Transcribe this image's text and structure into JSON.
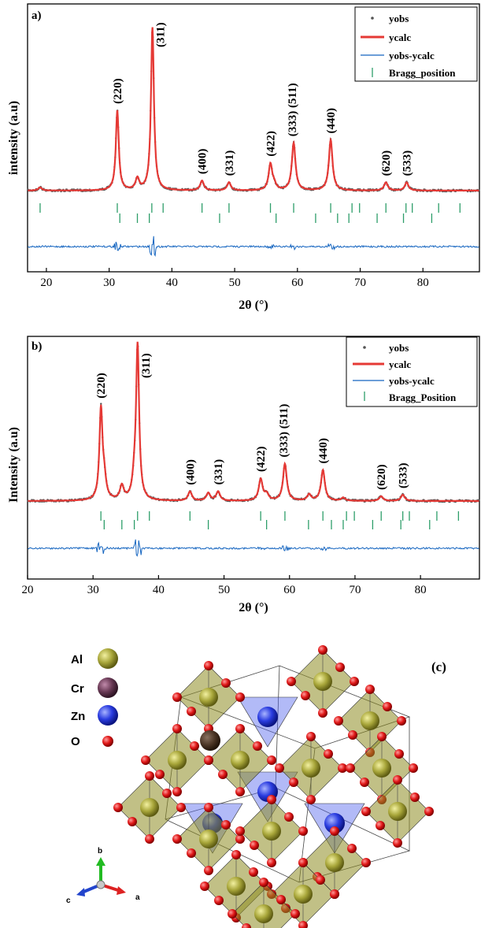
{
  "chart_data": [
    {
      "type": "line",
      "panel": "a)",
      "xlabel": "2θ (°)",
      "ylabel": "intensity (a.u)",
      "xlim": [
        17,
        89
      ],
      "xticks": [
        20,
        30,
        40,
        50,
        60,
        70,
        80
      ],
      "legend_position": "top-right",
      "legend": [
        "yobs",
        "ycalc",
        "yobs-ycalc",
        "Bragg_position"
      ],
      "peaks": [
        {
          "x": 19.0,
          "y": 2
        },
        {
          "x": 31.3,
          "y": 49
        },
        {
          "x": 34.5,
          "y": 7
        },
        {
          "x": 36.9,
          "y": 100
        },
        {
          "x": 44.8,
          "y": 6
        },
        {
          "x": 49.1,
          "y": 5
        },
        {
          "x": 55.7,
          "y": 16
        },
        {
          "x": 56.3,
          "y": 3
        },
        {
          "x": 59.4,
          "y": 29
        },
        {
          "x": 65.3,
          "y": 31
        },
        {
          "x": 74.1,
          "y": 5
        },
        {
          "x": 77.4,
          "y": 5
        }
      ],
      "peak_labels": [
        {
          "x": 31.3,
          "text": "(220)"
        },
        {
          "x": 36.9,
          "text": "(311)"
        },
        {
          "x": 44.8,
          "text": "(400)"
        },
        {
          "x": 49.1,
          "text": "(331)"
        },
        {
          "x": 55.7,
          "text": "(422)"
        },
        {
          "x": 59.4,
          "text": "(333) (511)"
        },
        {
          "x": 65.3,
          "text": "(440)"
        },
        {
          "x": 74.1,
          "text": "(620)"
        },
        {
          "x": 77.4,
          "text": "(533)"
        }
      ],
      "bragg_row1": [
        19.0,
        31.3,
        36.8,
        38.6,
        44.8,
        49.1,
        55.7,
        59.4,
        65.3,
        68.7,
        69.9,
        74.1,
        77.3,
        78.3,
        82.5,
        85.9
      ],
      "bragg_row2": [
        31.7,
        34.5,
        36.4,
        47.6,
        56.6,
        62.9,
        66.4,
        68.2,
        72.7,
        76.9,
        81.4
      ]
    },
    {
      "type": "line",
      "panel": "b)",
      "xlabel": "2θ (°)",
      "ylabel": "Intensity (a.u)",
      "xlim": [
        20,
        89
      ],
      "xticks": [
        20,
        30,
        40,
        50,
        60,
        70,
        80
      ],
      "legend_position": "top-right",
      "legend": [
        "yobs",
        "ycalc",
        "yobs-ycalc",
        "Bragg_Position"
      ],
      "peaks": [
        {
          "x": 31.2,
          "y": 58
        },
        {
          "x": 31.7,
          "y": 13
        },
        {
          "x": 34.4,
          "y": 9
        },
        {
          "x": 36.3,
          "y": 10
        },
        {
          "x": 36.8,
          "y": 100
        },
        {
          "x": 44.8,
          "y": 6
        },
        {
          "x": 47.6,
          "y": 5
        },
        {
          "x": 49.1,
          "y": 6
        },
        {
          "x": 55.6,
          "y": 14
        },
        {
          "x": 56.5,
          "y": 4
        },
        {
          "x": 59.3,
          "y": 24
        },
        {
          "x": 63.0,
          "y": 4
        },
        {
          "x": 65.1,
          "y": 20
        },
        {
          "x": 68.2,
          "y": 2
        },
        {
          "x": 74.0,
          "y": 3
        },
        {
          "x": 77.3,
          "y": 4
        }
      ],
      "peak_labels": [
        {
          "x": 31.2,
          "text": "(220)"
        },
        {
          "x": 36.8,
          "text": "(311)"
        },
        {
          "x": 44.8,
          "text": "(400)"
        },
        {
          "x": 49.1,
          "text": "(331)"
        },
        {
          "x": 55.6,
          "text": "(422)"
        },
        {
          "x": 59.3,
          "text": "(333) (511)"
        },
        {
          "x": 65.1,
          "text": "(440)"
        },
        {
          "x": 74.0,
          "text": "(620)"
        },
        {
          "x": 77.3,
          "text": "(533)"
        }
      ],
      "bragg_row1": [
        31.2,
        36.8,
        38.6,
        44.8,
        55.6,
        59.3,
        65.1,
        68.7,
        69.9,
        74.0,
        77.3,
        78.3,
        82.5,
        85.8
      ],
      "bragg_row2": [
        31.7,
        34.4,
        36.3,
        47.6,
        56.5,
        62.9,
        66.4,
        68.2,
        72.7,
        77.0,
        81.4
      ]
    }
  ],
  "structure": {
    "panel_label": "(c)",
    "legend": [
      {
        "label": "Al",
        "color": "#8e8c22"
      },
      {
        "label": "Cr",
        "color": "#5a3048"
      },
      {
        "label": "Zn",
        "color": "#2233dd"
      },
      {
        "label": "O",
        "color": "#dd1111"
      }
    ],
    "axes": {
      "a": "a",
      "b": "b",
      "c": "c"
    }
  },
  "colors": {
    "yobs": "#555555",
    "ycalc": "#e53935",
    "diff": "#1565c0",
    "bragg": "#2e9e6a"
  }
}
